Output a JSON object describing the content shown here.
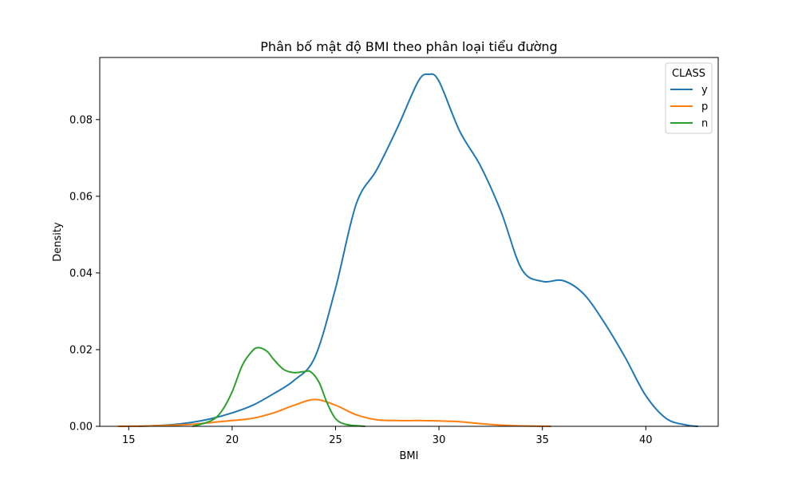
{
  "chart_data": {
    "type": "line",
    "title": "Phân bố mật độ BMI theo phân loại tiểu đường",
    "xlabel": "BMI",
    "ylabel": "Density",
    "xlim": [
      13.6,
      43.5
    ],
    "ylim": [
      0,
      0.0962
    ],
    "xticks": [
      15,
      20,
      25,
      30,
      35,
      40
    ],
    "yticks": [
      0.0,
      0.02,
      0.04,
      0.06,
      0.08
    ],
    "ytick_labels": [
      "0.00",
      "0.02",
      "0.04",
      "0.06",
      "0.08"
    ],
    "grid": false,
    "legend": {
      "title": "CLASS",
      "placement": "top-right"
    },
    "series": [
      {
        "name": "y",
        "color": "#1f77b4",
        "x": [
          15.5,
          17,
          18,
          19,
          20,
          21,
          22,
          23,
          24,
          25,
          26,
          27,
          28,
          29,
          29.5,
          30,
          31,
          32,
          33,
          34,
          35,
          36,
          37,
          38,
          39,
          40,
          41,
          42,
          42.5
        ],
        "y": [
          0.0,
          0.0004,
          0.001,
          0.002,
          0.0035,
          0.0055,
          0.0085,
          0.012,
          0.018,
          0.036,
          0.058,
          0.067,
          0.078,
          0.09,
          0.0918,
          0.09,
          0.077,
          0.068,
          0.056,
          0.041,
          0.0378,
          0.038,
          0.0345,
          0.027,
          0.018,
          0.008,
          0.002,
          0.0003,
          0.0
        ]
      },
      {
        "name": "p",
        "color": "#ff7f0e",
        "x": [
          14.5,
          16,
          18,
          19,
          20,
          21,
          22,
          23,
          24,
          25,
          26,
          27,
          28,
          29,
          30,
          31,
          32,
          33,
          34,
          35.4
        ],
        "y": [
          0.0,
          0.0001,
          0.0005,
          0.001,
          0.0015,
          0.0021,
          0.0035,
          0.0055,
          0.007,
          0.0055,
          0.003,
          0.0017,
          0.0015,
          0.0015,
          0.0014,
          0.0012,
          0.0007,
          0.0003,
          0.0001,
          0.0
        ]
      },
      {
        "name": "n",
        "color": "#2ca02c",
        "x": [
          18.1,
          19,
          19.5,
          20,
          20.5,
          21,
          21.3,
          21.7,
          22,
          22.5,
          23,
          23.5,
          23.8,
          24.2,
          24.6,
          25,
          25.5,
          26.4
        ],
        "y": [
          0.0,
          0.0015,
          0.004,
          0.009,
          0.016,
          0.0198,
          0.0205,
          0.0195,
          0.0175,
          0.0148,
          0.014,
          0.0143,
          0.0142,
          0.0115,
          0.006,
          0.002,
          0.0005,
          0.0
        ]
      }
    ]
  }
}
